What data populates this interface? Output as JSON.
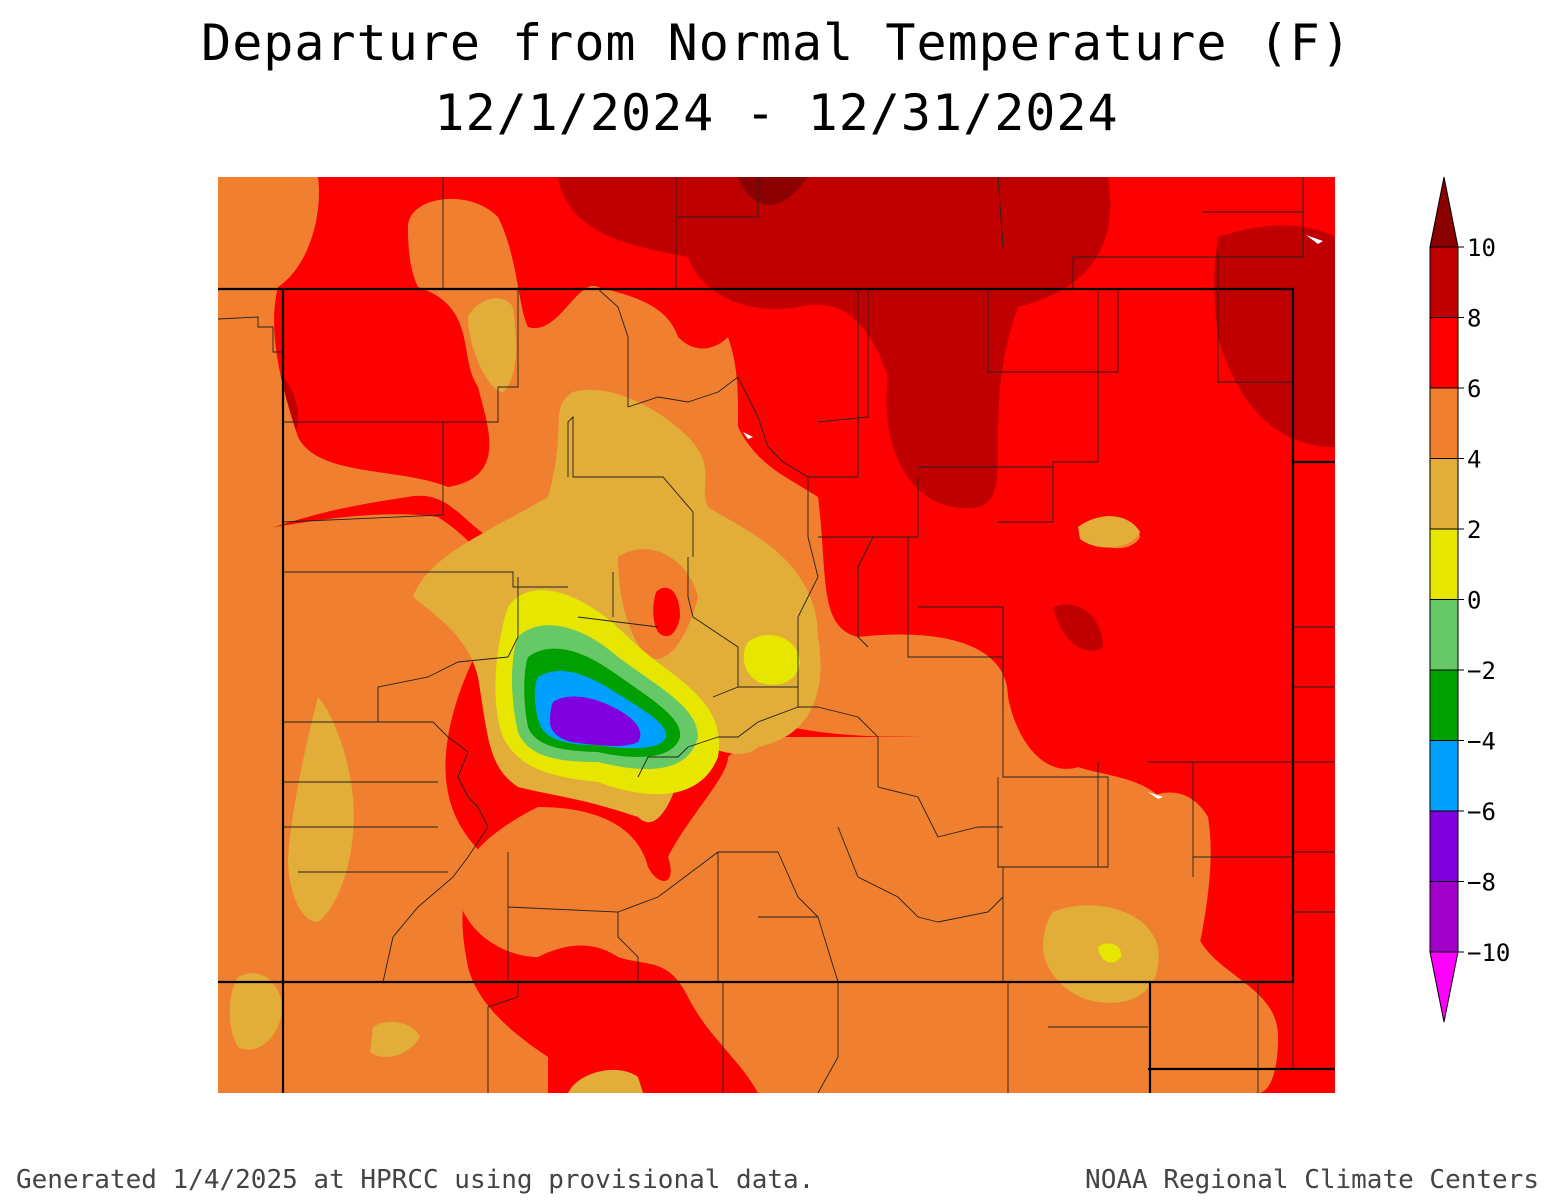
{
  "title": "Departure from Normal Temperature (F)",
  "subtitle": "12/1/2024 - 12/31/2024",
  "footer_left": "Generated 1/4/2025 at HPRCC using provisional data.",
  "footer_right": "NOAA Regional Climate Centers",
  "legend": {
    "labels": [
      "10",
      "8",
      "6",
      "4",
      "2",
      "0",
      "−2",
      "−4",
      "−6",
      "−8",
      "−10"
    ],
    "bands": [
      {
        "color": "#8b0000"
      },
      {
        "color": "#c00000"
      },
      {
        "color": "#ff0000"
      },
      {
        "color": "#f08030"
      },
      {
        "color": "#e2ad38"
      },
      {
        "color": "#e6e600"
      },
      {
        "color": "#66c866"
      },
      {
        "color": "#00a000"
      },
      {
        "color": "#00a0ff"
      },
      {
        "color": "#8000e0"
      },
      {
        "color": "#a000c8"
      },
      {
        "color": "#ff00ff"
      }
    ]
  },
  "colors": {
    "dark_red": "#8b0000",
    "red_8": "#c00000",
    "red_6": "#ff0000",
    "orange_4": "#f08030",
    "tan_2": "#e2ad38",
    "yellow_0": "#e6e600",
    "lightgreen_m2": "#66c866",
    "green_m4": "#00a000",
    "blue_m6": "#00a0ff",
    "purple_m8": "#8000e0"
  }
}
